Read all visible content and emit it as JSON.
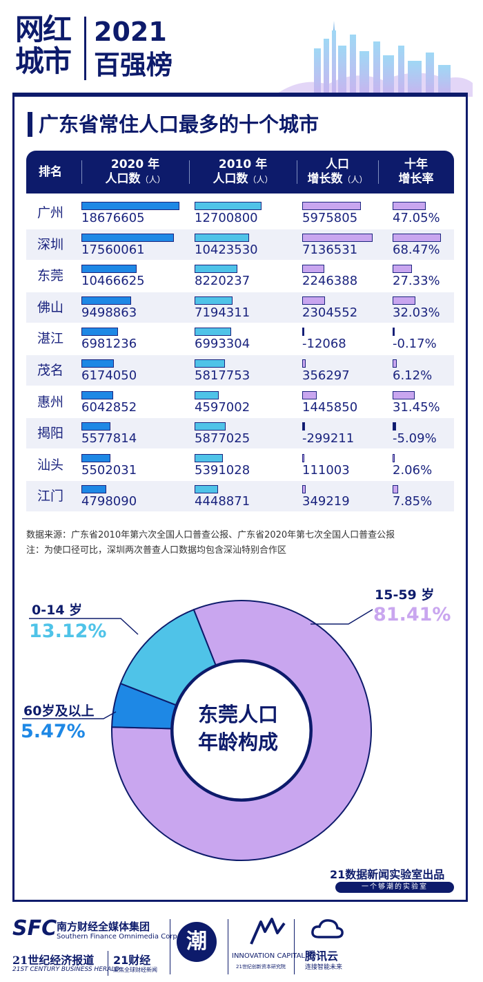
{
  "header": {
    "logo_lines": [
      "网红",
      "城市"
    ],
    "year": "2021",
    "board": "百强榜"
  },
  "section_title": "广东省常住人口最多的十个城市",
  "table": {
    "columns": [
      {
        "line1": "排名",
        "line2": "",
        "unit": ""
      },
      {
        "line1": "2020 年",
        "line2": "人口数",
        "unit": "（人）"
      },
      {
        "line1": "2010 年",
        "line2": "人口数",
        "unit": "（人）"
      },
      {
        "line1": "人口",
        "line2": "增长数",
        "unit": "（人）"
      },
      {
        "line1": "十年",
        "line2": "增长率",
        "unit": ""
      }
    ],
    "rows": [
      {
        "city": "广州",
        "pop2020": "18676605",
        "pop2010": "12700800",
        "growth": "5975805",
        "rate": "47.05%"
      },
      {
        "city": "深圳",
        "pop2020": "17560061",
        "pop2010": "10423530",
        "growth": "7136531",
        "rate": "68.47%"
      },
      {
        "city": "东莞",
        "pop2020": "10466625",
        "pop2010": "8220237",
        "growth": "2246388",
        "rate": "27.33%"
      },
      {
        "city": "佛山",
        "pop2020": "9498863",
        "pop2010": "7194311",
        "growth": "2304552",
        "rate": "32.03%"
      },
      {
        "city": "湛江",
        "pop2020": "6981236",
        "pop2010": "6993304",
        "growth": "-12068",
        "rate": "-0.17%"
      },
      {
        "city": "茂名",
        "pop2020": "6174050",
        "pop2010": "5817753",
        "growth": "356297",
        "rate": "6.12%"
      },
      {
        "city": "惠州",
        "pop2020": "6042852",
        "pop2010": "4597002",
        "growth": "1445850",
        "rate": "31.45%"
      },
      {
        "city": "揭阳",
        "pop2020": "5577814",
        "pop2010": "5877025",
        "growth": "-299211",
        "rate": "-5.09%"
      },
      {
        "city": "汕头",
        "pop2020": "5502031",
        "pop2010": "5391028",
        "growth": "111003",
        "rate": "2.06%"
      },
      {
        "city": "江门",
        "pop2020": "4798090",
        "pop2010": "4448871",
        "growth": "349219",
        "rate": "7.85%"
      }
    ]
  },
  "notes": {
    "source": "数据来源：广东省2010年第六次全国人口普查公报、广东省2020年第七次全国人口普查公报",
    "note": "注：为使口径可比，深圳两次普查人口数据均包含深汕特别合作区"
  },
  "donut": {
    "center_line1": "东莞人口",
    "center_line2": "年龄构成",
    "segments": [
      {
        "name": "15-59 岁",
        "pct": "81.41%",
        "value": 81.41,
        "color": "#c9a6ef"
      },
      {
        "name": "0-14 岁",
        "pct": "13.12%",
        "value": 13.12,
        "color": "#4fc3e8"
      },
      {
        "name": "60岁及以上",
        "pct": "5.47%",
        "value": 5.47,
        "color": "#1e88e5"
      }
    ]
  },
  "credit": {
    "main": "21数据新闻实验室出品",
    "sub": "一个够潮的实验室"
  },
  "footer": {
    "sfc": "SFC",
    "group_cn": "南方财经全媒体集团",
    "group_en": "Southern Finance Omnimedia Corp.",
    "herald_cn": "21世纪经济报道",
    "herald_en": "21ST CENTURY BUSINESS HERALD",
    "caijing": "21财经",
    "caijing_sub": "聚焦全球财经新闻",
    "chao_mark": "潮",
    "innov": "INNOVATION CAPITAL",
    "innov_sub": "21世纪创新资本研究院",
    "tencent": "腾讯云",
    "tencent_sub": "连接智能未来"
  },
  "colors": {
    "navy": "#0d1b6b",
    "bar2020": "#1e88e5",
    "bar2010": "#4fc3e8",
    "barGrowth": "#c9a6ef",
    "teen": "#4fc3e8",
    "adult": "#c9a6ef",
    "senior": "#1e88e5"
  },
  "chart_data": [
    {
      "type": "bar",
      "title": "广东省常住人口最多的十个城市",
      "categories": [
        "广州",
        "深圳",
        "东莞",
        "佛山",
        "湛江",
        "茂名",
        "惠州",
        "揭阳",
        "汕头",
        "江门"
      ],
      "series": [
        {
          "name": "2020 年人口数（人）",
          "values": [
            18676605,
            17560061,
            10466625,
            9498863,
            6981236,
            6174050,
            6042852,
            5577814,
            5502031,
            4798090
          ]
        },
        {
          "name": "2010 年人口数（人）",
          "values": [
            12700800,
            10423530,
            8220237,
            7194311,
            6993304,
            5817753,
            4597002,
            5877025,
            5391028,
            4448871
          ]
        },
        {
          "name": "人口增长数（人）",
          "values": [
            5975805,
            7136531,
            2246388,
            2304552,
            -12068,
            356297,
            1445850,
            -299211,
            111003,
            349219
          ]
        },
        {
          "name": "十年增长率",
          "values": [
            47.05,
            68.47,
            27.33,
            32.03,
            -0.17,
            6.12,
            31.45,
            -5.09,
            2.06,
            7.85
          ]
        }
      ]
    },
    {
      "type": "pie",
      "title": "东莞人口年龄构成",
      "categories": [
        "15-59 岁",
        "0-14 岁",
        "60岁及以上"
      ],
      "values": [
        81.41,
        13.12,
        5.47
      ]
    }
  ]
}
